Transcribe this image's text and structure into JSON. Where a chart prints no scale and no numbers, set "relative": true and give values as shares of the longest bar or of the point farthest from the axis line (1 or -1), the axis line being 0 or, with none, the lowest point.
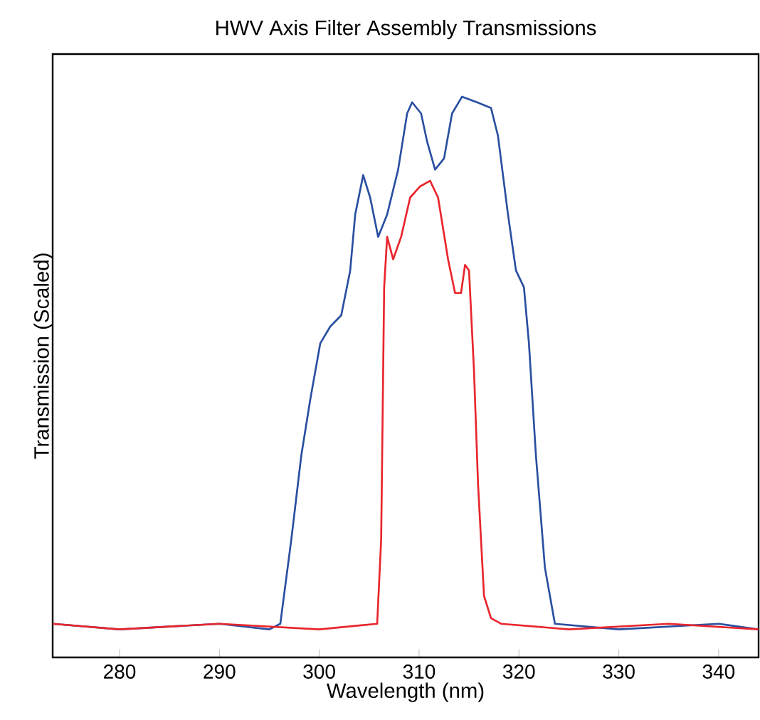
{
  "chart_data": {
    "type": "line",
    "title": "HWV Axis Filter Assembly Transmissions",
    "xlabel": "Wavelength (nm)",
    "ylabel": "Transmission (Scaled)",
    "relative": true,
    "xlim": [
      273.3,
      344
    ],
    "xticks": [
      280,
      290,
      300,
      310,
      320,
      330,
      340
    ],
    "grid": false,
    "line_style": "solid",
    "marker": "none",
    "series": [
      {
        "color": "#2a4fa0",
        "x": [
          273.3,
          280,
          290,
          295,
          296.1,
          297.2,
          298.2,
          299.1,
          300.1,
          301.1,
          302.2,
          303.1,
          303.6,
          304.4,
          305.1,
          305.9,
          306.8,
          307.9,
          308.8,
          309.3,
          310.2,
          310.8,
          311.6,
          312.5,
          313.3,
          314.3,
          315.8,
          317.2,
          317.9,
          318.9,
          319.7,
          320.5,
          321.0,
          321.7,
          322.6,
          323.6,
          330,
          340,
          344
        ],
        "values": [
          0.06,
          0.05,
          0.06,
          0.05,
          0.06,
          0.21,
          0.36,
          0.46,
          0.56,
          0.59,
          0.61,
          0.69,
          0.79,
          0.86,
          0.82,
          0.75,
          0.79,
          0.87,
          0.97,
          0.99,
          0.97,
          0.92,
          0.87,
          0.89,
          0.97,
          1.0,
          0.99,
          0.98,
          0.93,
          0.79,
          0.69,
          0.66,
          0.56,
          0.36,
          0.16,
          0.06,
          0.05,
          0.06,
          0.05
        ]
      },
      {
        "color": "#e8262c",
        "x": [
          273.3,
          280,
          290,
          300,
          305.8,
          306.2,
          306.5,
          306.8,
          307.4,
          308.2,
          309.1,
          310.1,
          311.1,
          311.9,
          312.9,
          313.6,
          314.2,
          314.6,
          315.0,
          315.5,
          315.9,
          316.5,
          317.2,
          318.2,
          325,
          335,
          344
        ],
        "values": [
          0.06,
          0.05,
          0.06,
          0.05,
          0.06,
          0.21,
          0.66,
          0.75,
          0.71,
          0.75,
          0.82,
          0.84,
          0.85,
          0.82,
          0.71,
          0.65,
          0.65,
          0.7,
          0.69,
          0.51,
          0.31,
          0.11,
          0.07,
          0.06,
          0.05,
          0.06,
          0.05
        ]
      }
    ]
  }
}
